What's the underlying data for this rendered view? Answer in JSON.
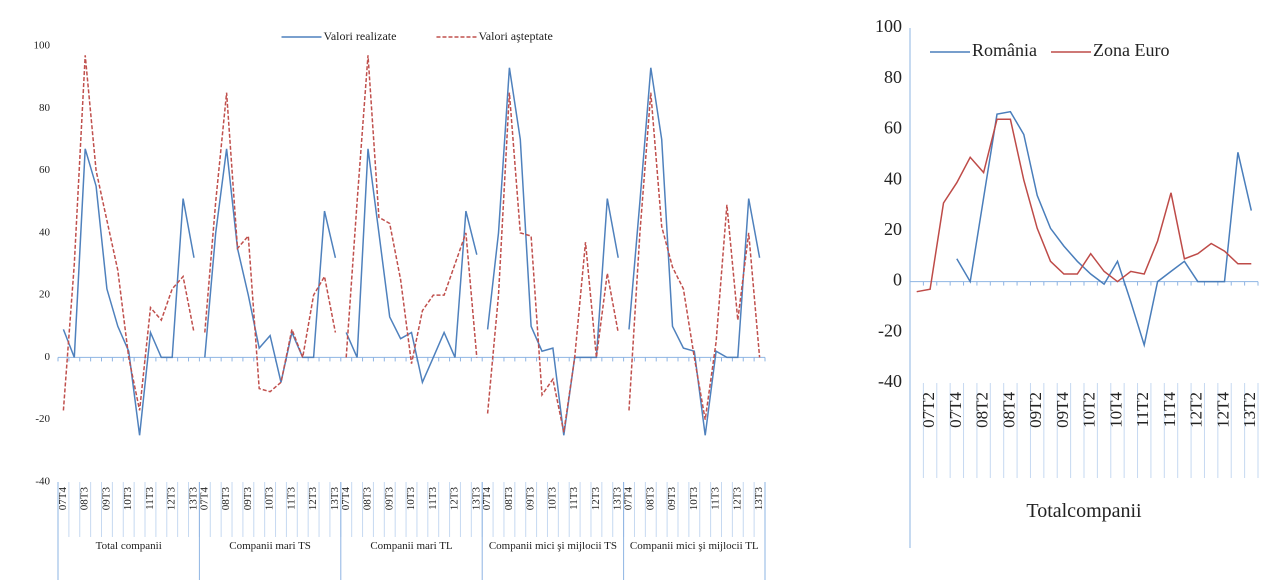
{
  "chart_data": [
    {
      "type": "line",
      "groups": [
        "Total companii",
        "Companii mari TS",
        "Companii mari TL",
        "Companii mici şi mijlocii TS",
        "Companii mici şi mijlocii TL"
      ],
      "categories": [
        "07T4",
        null,
        "08T3",
        null,
        "09T3",
        null,
        "10T3",
        null,
        "11T3",
        null,
        "12T3",
        null,
        "13T3",
        "07T4",
        null,
        "08T3",
        null,
        "09T3",
        null,
        "10T3",
        null,
        "11T3",
        null,
        "12T3",
        null,
        "13T3",
        "07T4",
        null,
        "08T3",
        null,
        "09T3",
        null,
        "10T3",
        null,
        "11T3",
        null,
        "12T3",
        null,
        "13T3",
        "07T4",
        null,
        "08T3",
        null,
        "09T3",
        null,
        "10T3",
        null,
        "11T3",
        null,
        "12T3",
        null,
        "13T3",
        "07T4",
        null,
        "08T3",
        null,
        "09T3",
        null,
        "10T3",
        null,
        "11T3",
        null,
        "12T3",
        null,
        "13T3"
      ],
      "series": [
        {
          "name": "Valori realizate",
          "color": "#4f81bd",
          "line_style": "solid",
          "values": [
            9,
            0,
            67,
            55,
            22,
            10,
            2,
            -25,
            8,
            0,
            0,
            51,
            32,
            0,
            40,
            67,
            35,
            20,
            3,
            7,
            -8,
            8,
            0,
            0,
            47,
            32,
            8,
            0,
            67,
            40,
            13,
            6,
            8,
            -8,
            0,
            8,
            0,
            47,
            33,
            9,
            40,
            93,
            70,
            10,
            2,
            3,
            -25,
            0,
            0,
            0,
            51,
            32,
            9,
            50,
            93,
            70,
            10,
            3,
            2,
            -25,
            2,
            0,
            0,
            51,
            32
          ]
        },
        {
          "name": "Valori aşteptate",
          "color": "#c0504d",
          "line_style": "dashed",
          "values": [
            -17,
            30,
            97,
            60,
            44,
            28,
            0,
            -17,
            16,
            12,
            22,
            26,
            8,
            8,
            50,
            85,
            35,
            39,
            -10,
            -11,
            -8,
            9,
            0,
            20,
            26,
            8,
            0,
            50,
            97,
            45,
            43,
            25,
            -2,
            15,
            20,
            20,
            30,
            40,
            0,
            -18,
            20,
            85,
            40,
            39,
            -12,
            -7,
            -24,
            0,
            37,
            0,
            27,
            8,
            -17,
            40,
            85,
            42,
            29,
            22,
            0,
            -20,
            5,
            49,
            12,
            40,
            0
          ]
        }
      ],
      "ylim": [
        -40,
        100
      ],
      "yticks": [
        -40,
        -20,
        0,
        20,
        40,
        60,
        80,
        100
      ],
      "grid": false,
      "legend": "top"
    },
    {
      "type": "line",
      "groups": [
        "Totalcompanii"
      ],
      "categories": [
        null,
        "07T2",
        null,
        "07T4",
        null,
        "08T2",
        null,
        "08T4",
        null,
        "09T2",
        null,
        "09T4",
        null,
        "10T2",
        null,
        "10T4",
        null,
        "11T2",
        null,
        "11T4",
        null,
        "12T2",
        null,
        "12T4",
        null,
        "13T2"
      ],
      "series": [
        {
          "name": "România",
          "color": "#4a7ebb",
          "line_style": "solid",
          "values": [
            null,
            null,
            null,
            9,
            0,
            33,
            66,
            67,
            58,
            34,
            21,
            14,
            8,
            3,
            -1,
            8,
            -8,
            -25,
            0,
            4,
            8,
            0,
            0,
            0,
            51,
            28
          ]
        },
        {
          "name": "Zona Euro",
          "color": "#be4b48",
          "line_style": "solid",
          "values": [
            -4,
            -3,
            31,
            39,
            49,
            43,
            64,
            64,
            40,
            21,
            8,
            3,
            3,
            11,
            4,
            0,
            4,
            3,
            16,
            35,
            9,
            11,
            15,
            12,
            7,
            7
          ]
        }
      ],
      "ylim": [
        -40,
        100
      ],
      "yticks": [
        -40,
        -20,
        0,
        20,
        40,
        60,
        80,
        100
      ],
      "grid": false,
      "legend": "top-left"
    }
  ]
}
